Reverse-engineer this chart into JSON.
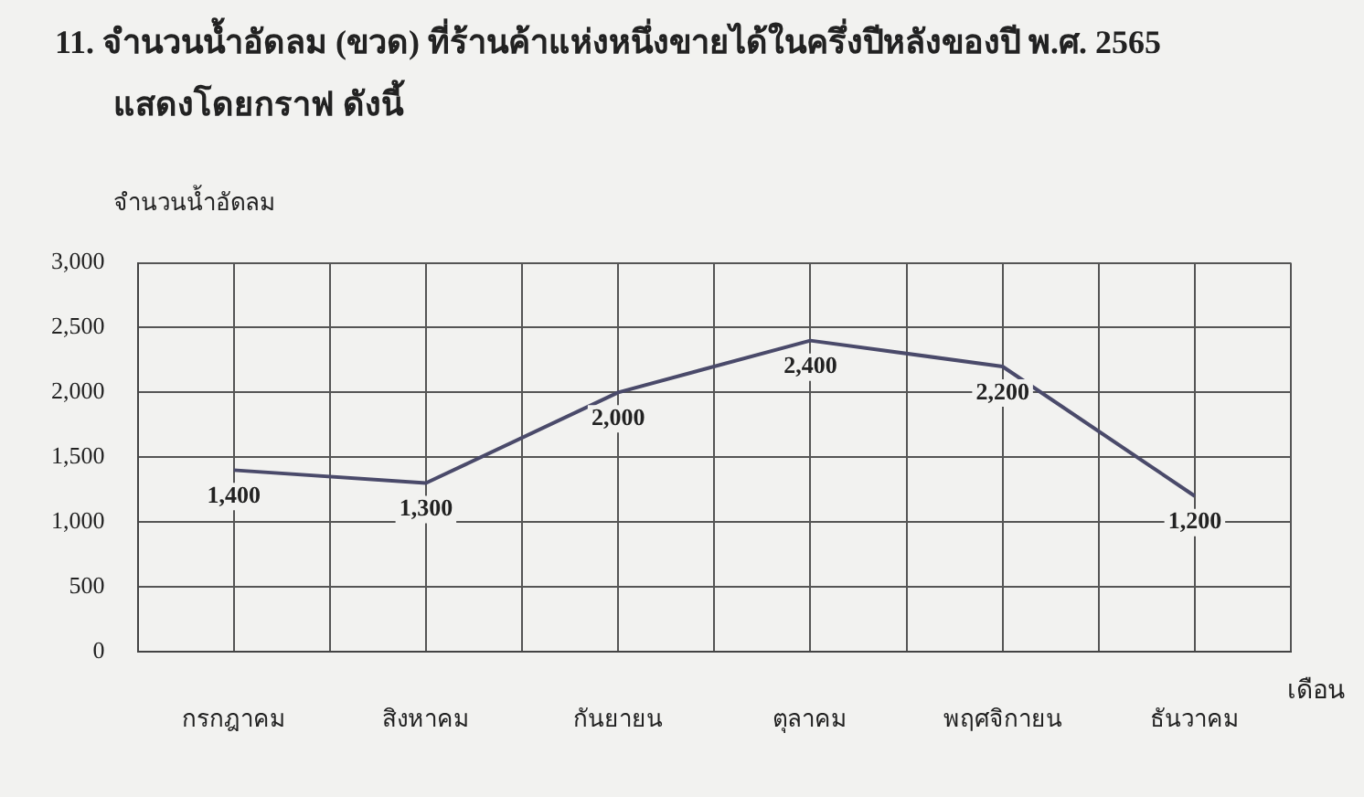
{
  "chart_data": {
    "type": "line",
    "title": "11. จำนวนน้ำอัดลม (ขวด) ที่ร้านค้าแห่งหนึ่งขายได้ในครึ่งปีหลังของปี พ.ศ. 2565\nแสดงโดยกราฟ ดังนี้",
    "ylabel": "จำนวนน้ำอัดลม",
    "xlabel": "เดือน",
    "categories": [
      "กรกฎาคม",
      "สิงหาคม",
      "กันยายน",
      "ตุลาคม",
      "พฤศจิกายน",
      "ธันวาคม"
    ],
    "series": [
      {
        "color": "#4a4a6a",
        "values": [
          1400,
          1300,
          2000,
          2400,
          2200,
          1200
        ],
        "value_labels": [
          "1,400",
          "1,300",
          "2,000",
          "2,400",
          "2,200",
          "1,200"
        ]
      }
    ],
    "ylim": [
      0,
      3000
    ],
    "yticks": [
      0,
      500,
      {
        "value": 1000,
        "label": "1,000"
      },
      {
        "value": 1500,
        "label": "1,500"
      },
      {
        "value": 2000,
        "label": "2,000"
      },
      {
        "value": 2500,
        "label": "2,500"
      },
      {
        "value": 3000,
        "label": "3,000"
      }
    ],
    "grid": true,
    "legend": false,
    "marker": "none",
    "line_style": "solid"
  }
}
